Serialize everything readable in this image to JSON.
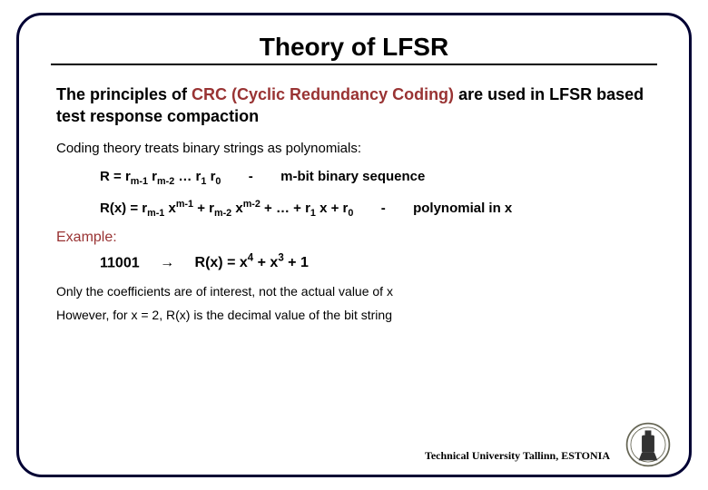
{
  "title": {
    "text": "Theory of LFSR",
    "fontsize": 28
  },
  "intro": {
    "prefix": "The principles of ",
    "accent": "CRC  (Cyclic Redundancy Coding)",
    "suffix": " are used in LFSR  based test response compaction",
    "fontsize": 18
  },
  "coding_line": {
    "text": "Coding theory treats binary strings as polynomials:",
    "fontsize": 15
  },
  "r_def": {
    "lhs": "R = ",
    "terms": [
      "r",
      "m-1",
      " r",
      "m-2",
      " … r",
      "1",
      " r",
      "0"
    ],
    "sep": "-",
    "desc": "m-bit binary sequence",
    "fontsize": 15,
    "sep_gap_before": 22,
    "sep_gap_after": 22
  },
  "rx_def": {
    "lhs": "R(x) = ",
    "expr_html": "r<sub>m-1</sub> x<sup>m-1</sup> + r<sub>m-2</sub> x<sup>m-2</sup> + … + r<sub>1</sub> x + r<sub>0</sub>",
    "sep": "-",
    "desc": "polynomial in x",
    "fontsize": 15,
    "sep_gap_before": 22,
    "sep_gap_after": 22
  },
  "example": {
    "label": "Example:",
    "value": "11001",
    "arrow": "→",
    "result_html": "R(x) = x<sup>4</sup> + x<sup>3</sup> + 1",
    "fontsize": 16
  },
  "note1": {
    "text": "Only the coefficients are of interest, not the actual value of x",
    "fontsize": 14
  },
  "note2": {
    "text": "However, for x = 2, R(x) is the decimal value of the bit string",
    "fontsize": 14
  },
  "footer": {
    "text": "Technical University Tallinn, ESTONIA",
    "fontsize": 12
  },
  "colors": {
    "frame": "#000033",
    "text": "#000000",
    "accent": "#993333",
    "bg": "#ffffff",
    "logo_stroke": "#666655",
    "logo_dark": "#333333"
  },
  "frame": {
    "border_width": 3,
    "radius": 28
  }
}
